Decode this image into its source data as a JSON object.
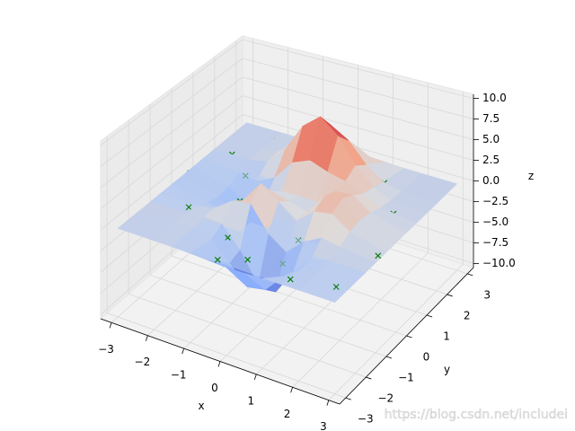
{
  "chart_data": {
    "type": "surface3d",
    "x": [
      -3,
      -2,
      -1.5,
      -1,
      -0.5,
      0,
      0.5,
      1,
      1.5,
      2,
      3
    ],
    "y": [
      -3,
      -2,
      -1.5,
      -1,
      -0.5,
      0,
      0.5,
      1,
      1.5,
      2,
      3
    ],
    "z": [
      [
        0,
        0,
        0,
        -0.03,
        -0.14,
        -0.24,
        -0.22,
        -0.11,
        -0.03,
        -0.01,
        0
      ],
      [
        0,
        0.05,
        0.05,
        -0.59,
        -2.64,
        -4.75,
        -4.34,
        -2.1,
        -0.53,
        -0.06,
        0
      ],
      [
        0,
        0.08,
        0.33,
        0.15,
        -2.19,
        -5.68,
        -5.76,
        -2.63,
        -0.44,
        0.04,
        0
      ],
      [
        -0.01,
        -0.13,
        0.3,
        1.86,
        2.22,
        -0.72,
        -2.22,
        -0.27,
        0.88,
        0.5,
        0.01
      ],
      [
        -0.03,
        -0.8,
        -1.21,
        0.8,
        3.55,
        2.0,
        0.39,
        2.2,
        2.56,
        1.12,
        0.03
      ],
      [
        -0.04,
        -1.33,
        -2.77,
        -1.65,
        1.48,
        0.98,
        0.37,
        2.94,
        3.27,
        1.41,
        0.03
      ],
      [
        -0.03,
        -1.12,
        -2.49,
        -2.0,
        0.39,
        0.46,
        0.38,
        2.38,
        2.56,
        1.09,
        0.03
      ],
      [
        -0.01,
        -0.48,
        -0.87,
        0.23,
        2.79,
        3.69,
        2.93,
        2.43,
        1.58,
        0.58,
        0.01
      ],
      [
        0,
        -0.01,
        0.48,
        2.61,
        6.2,
        8.0,
        6.25,
        3.26,
        1.19,
        0.29,
        0
      ],
      [
        0,
        0.08,
        0.55,
        2.09,
        4.55,
        5.85,
        4.56,
        2.21,
        0.68,
        0.13,
        0
      ],
      [
        0,
        0.01,
        0.03,
        0.11,
        0.23,
        0.3,
        0.23,
        0.11,
        0.03,
        0.01,
        0
      ]
    ],
    "cmap": "coolwarm",
    "plane": {
      "z": 0,
      "color": "#b8cdf2",
      "alpha": 0.55
    },
    "scatter": {
      "color": "#0a7d0a",
      "x": [
        -2.8,
        -2.1,
        -1.7,
        -0.9,
        -0.3,
        0.4,
        1.1,
        1.8,
        2.5,
        2.9,
        -2.5,
        -1.2,
        0.1,
        0.9,
        1.6,
        2.3,
        -2.9,
        -1.9,
        -0.6,
        0.7,
        1.4,
        2.7,
        -1.4,
        0.3
      ],
      "y": [
        -2.6,
        -1.2,
        0.8,
        2.4,
        -2.9,
        1.9,
        -2.2,
        0.5,
        2.8,
        -0.7,
        1.5,
        -0.3,
        2.9,
        -1.1,
        -2.7,
        1.1,
        0.2,
        2.6,
        -1.9,
        0.9,
        2.2,
        -2.4,
        -0.9,
        -2.5
      ],
      "z": [
        0,
        0,
        0,
        0,
        0,
        0,
        0,
        0,
        0,
        0,
        0,
        0,
        0,
        0,
        0,
        0,
        0,
        0,
        0,
        0,
        0,
        0,
        0,
        0
      ]
    },
    "xlim": [
      -3.3,
      3.3
    ],
    "ylim": [
      -3.3,
      3.3
    ],
    "zlim": [
      -10.5,
      10.5
    ],
    "xticks": [
      {
        "value": -3,
        "label": "−3"
      },
      {
        "value": -2,
        "label": "−2"
      },
      {
        "value": -1,
        "label": "−1"
      },
      0,
      1,
      2,
      3
    ],
    "yticks": [
      {
        "value": -3,
        "label": "−3"
      },
      {
        "value": -2,
        "label": "−2"
      },
      {
        "value": -1,
        "label": "−1"
      },
      0,
      1,
      2,
      3
    ],
    "zticks": [
      {
        "value": -10,
        "label": "−10.0"
      },
      {
        "value": -7.5,
        "label": "−7.5"
      },
      {
        "value": -5,
        "label": "−5.0"
      },
      {
        "value": -2.5,
        "label": "−2.5"
      },
      {
        "value": 0,
        "label": "0.0"
      },
      {
        "value": 2.5,
        "label": "2.5"
      },
      {
        "value": 5,
        "label": "5.0"
      },
      {
        "value": 7.5,
        "label": "7.5"
      },
      {
        "value": 10,
        "label": "10.0"
      }
    ],
    "xlabel": "x",
    "ylabel": "y",
    "zlabel": "z",
    "watermark": "https://blog.csdn.net/includei"
  }
}
